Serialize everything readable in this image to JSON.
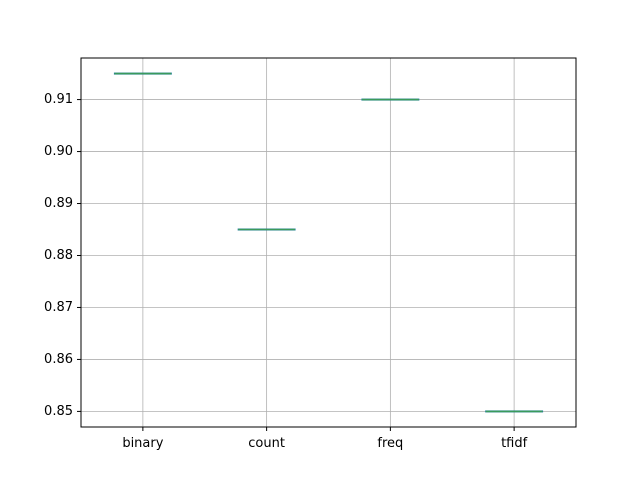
{
  "chart_data": {
    "type": "box",
    "categories": [
      "binary",
      "count",
      "freq",
      "tfidf"
    ],
    "values": [
      0.915,
      0.885,
      0.91,
      0.85
    ],
    "ylim": [
      0.847,
      0.918
    ],
    "yticks": [
      0.85,
      0.86,
      0.87,
      0.88,
      0.89,
      0.9,
      0.91
    ],
    "ytick_labels": [
      "0.85",
      "0.86",
      "0.87",
      "0.88",
      "0.89",
      "0.90",
      "0.91"
    ],
    "grid": true,
    "title": "",
    "xlabel": "",
    "ylabel": "",
    "colors": {
      "median": "#3a9a5b",
      "box": "#1f77b4",
      "grid": "#b0b0b0",
      "axes": "#000000"
    }
  }
}
